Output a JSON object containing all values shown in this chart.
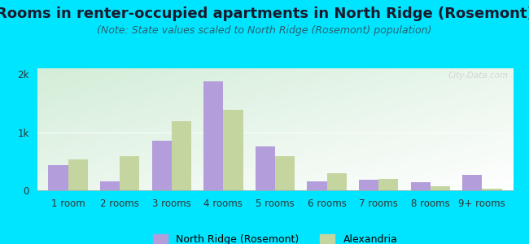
{
  "title": "Rooms in renter-occupied apartments in North Ridge (Rosemont)",
  "subtitle": "(Note: State values scaled to North Ridge (Rosemont) population)",
  "categories": [
    "1 room",
    "2 rooms",
    "3 rooms",
    "4 rooms",
    "5 rooms",
    "6 rooms",
    "7 rooms",
    "8 rooms",
    "9+ rooms"
  ],
  "north_ridge": [
    430,
    155,
    850,
    1870,
    750,
    155,
    185,
    145,
    265
  ],
  "alexandria": [
    530,
    590,
    1190,
    1380,
    590,
    290,
    195,
    70,
    35
  ],
  "bar_color_nr": "#b39ddb",
  "bar_color_alex": "#c5d5a0",
  "background_outer": "#00e5ff",
  "yticks": [
    0,
    1000,
    2000
  ],
  "ytick_labels": [
    "0",
    "1k",
    "2k"
  ],
  "ylim": [
    0,
    2100
  ],
  "bar_width": 0.38,
  "watermark": "City-Data.com",
  "legend_label_nr": "North Ridge (Rosemont)",
  "legend_label_alex": "Alexandria",
  "title_fontsize": 13,
  "subtitle_fontsize": 9,
  "tick_fontsize": 8.5,
  "legend_fontsize": 9
}
